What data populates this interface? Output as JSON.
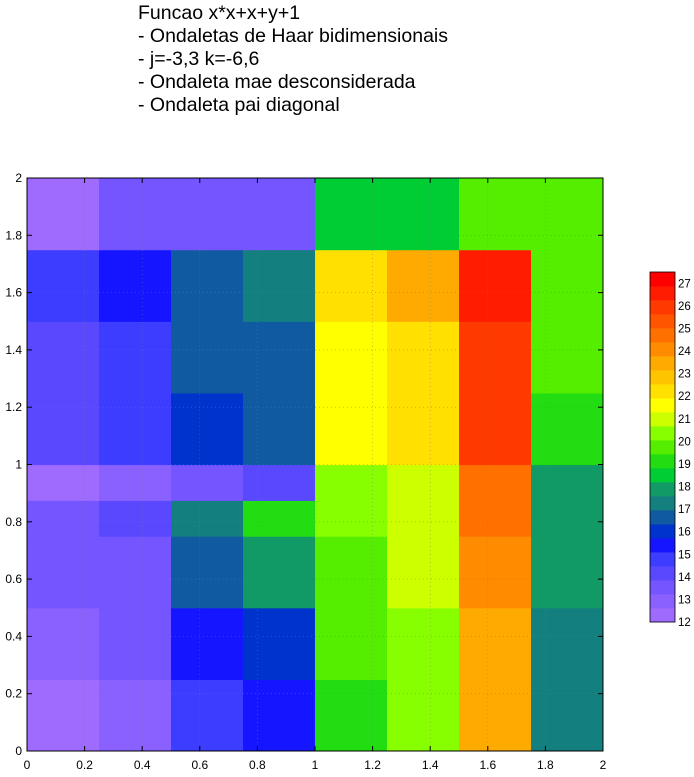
{
  "chart_data": {
    "type": "heatmap",
    "title_lines": [
      "Funcao x*x+x+y+1",
      "- Ondaletas de Haar bidimensionais",
      "- j=-3,3  k=-6,6",
      "- Ondaleta mae desconsiderada",
      "- Ondaleta pai diagonal"
    ],
    "xlabel": "",
    "ylabel": "",
    "xlim": [
      0,
      2
    ],
    "ylim": [
      0,
      2
    ],
    "x_ticks": [
      "0",
      "0.2",
      "0.4",
      "0.6",
      "0.8",
      "1",
      "1.2",
      "1.4",
      "1.6",
      "1.8",
      "2"
    ],
    "y_ticks": [
      "0",
      "0.2",
      "0.4",
      "0.6",
      "0.8",
      "1",
      "1.2",
      "1.4",
      "1.6",
      "1.8",
      "2"
    ],
    "colorbar_ticks": [
      "12",
      "13",
      "14",
      "15",
      "16",
      "17",
      "18",
      "19",
      "20",
      "21",
      "22",
      "23",
      "24",
      "25",
      "26",
      "27"
    ],
    "colorbar_range": [
      12,
      27.5
    ],
    "grid": true,
    "cell_x_edges": [
      0,
      0.25,
      0.5,
      0.75,
      1,
      1.25,
      1.5,
      1.75,
      2
    ],
    "cell_y_edges": [
      0,
      0.25,
      0.5,
      0.75,
      0.875,
      1,
      1.25,
      1.5,
      1.75,
      2
    ],
    "cells": [
      [
        12.3,
        12.8,
        14.8,
        15.3,
        19.2,
        20.4,
        23.2,
        17.2
      ],
      [
        12.8,
        13.3,
        15.3,
        16.3,
        19.6,
        20.6,
        23.4,
        17.4
      ],
      [
        13.3,
        13.8,
        16.8,
        17.8,
        19.8,
        21.0,
        24.3,
        17.6
      ],
      [
        13.8,
        14.3,
        17.4,
        19.0,
        20.2,
        21.2,
        24.5,
        17.8
      ],
      [
        12.6,
        12.8,
        13.8,
        13.9,
        20.2,
        20.9,
        24.6,
        18.0
      ],
      [
        14.0,
        14.5,
        16.2,
        16.4,
        21.5,
        22.4,
        25.7,
        19.3
      ],
      [
        14.2,
        14.6,
        16.4,
        16.6,
        21.4,
        22.5,
        25.8,
        19.5
      ],
      [
        14.6,
        15.1,
        16.9,
        17.2,
        22.4,
        23.4,
        26.4,
        19.6
      ],
      [
        12.6,
        13.4,
        13.4,
        13.5,
        18.5,
        18.5,
        20.0,
        20.0
      ]
    ],
    "colorbar_colors": [
      "#9F6BFF",
      "#8A60FF",
      "#7555FF",
      "#5A48FF",
      "#3D3DFF",
      "#1515FF",
      "#0033CC",
      "#0F5AA0",
      "#137F7F",
      "#119966",
      "#00CC33",
      "#22DD11",
      "#55EE00",
      "#88FF00",
      "#CCFF00",
      "#FFFF00",
      "#FFE000",
      "#FFC400",
      "#FFAA00",
      "#FF8C00",
      "#FF7000",
      "#FF5500",
      "#FF3A00",
      "#FF1C00",
      "#FF0000"
    ],
    "colors": {
      "background": "#ffffff",
      "axis": "#000000",
      "contour": "#7a7a7a"
    }
  }
}
